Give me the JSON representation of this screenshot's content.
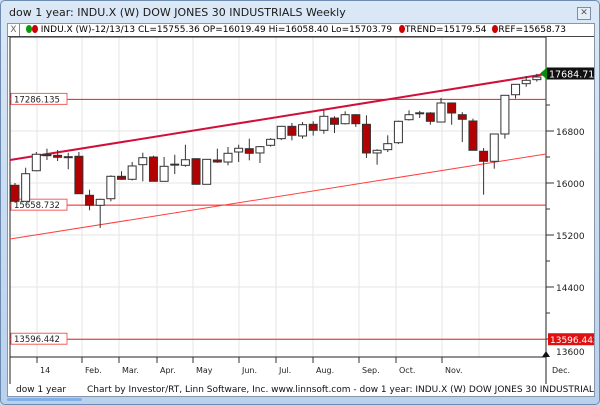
{
  "window": {
    "title": "dow 1 year: INDU.X (W) DOW JONES 30 INDUSTRIALS Weekly",
    "close_icon": "close-icon"
  },
  "legend": {
    "close": "X",
    "symbol": "INDU.X (W)-12/13/13",
    "cl": "CL=15755.36",
    "op": "OP=16019.49",
    "hi": "Hi=16058.40",
    "lo": "Lo=15703.79",
    "trend": "TREND=15179.54",
    "ref": "REF=15658.73",
    "colors": {
      "up": "#0a9a0a",
      "down": "#cc0000"
    }
  },
  "status": {
    "name": "dow 1 year",
    "credit": "Chart by Investor/RT, Linn Software, Inc. www.linnsoft.com - dow 1 year: INDU.X (W) DOW JONES 30 INDUSTRIALS Weekly"
  },
  "chart_data": {
    "type": "candlestick",
    "yticks": [
      16800,
      16000,
      15200,
      14400,
      13600
    ],
    "ylim": [
      13400,
      17900
    ],
    "xticks": [
      "14",
      "Feb.",
      "Mar.",
      "Apr.",
      "May",
      "Jun.",
      "Jul.",
      "Aug.",
      "Sep.",
      "Oct.",
      "Nov.",
      "Dec."
    ],
    "last_price": "17684.71",
    "ref_lines": [
      {
        "label": "17286.135",
        "value": 17286.135
      },
      {
        "label": "15658.732",
        "value": 15658.732
      },
      {
        "label": "13596.442",
        "value": 13596.442
      }
    ],
    "trend_upper": [
      16354,
      17677
    ],
    "trend_lower": [
      15138,
      16446
    ],
    "colors": {
      "down": "#b30000",
      "up": "#ffffff",
      "trend": "#d0103a",
      "ref": "#ee1c1c",
      "lower": "#ff4040"
    },
    "candles": [
      [
        15965,
        16000,
        15697,
        15718
      ],
      [
        15718,
        16235,
        15718,
        16143
      ],
      [
        16189,
        16477,
        16180,
        16442
      ],
      [
        16440,
        16528,
        16354,
        16420
      ],
      [
        16426,
        16508,
        16338,
        16395
      ],
      [
        16405,
        16466,
        16211,
        16395
      ],
      [
        16411,
        16477,
        15835,
        15835
      ],
      [
        15811,
        15897,
        15580,
        15657
      ],
      [
        15657,
        15758,
        15308,
        15749
      ],
      [
        15758,
        16118,
        15718,
        16103
      ],
      [
        16103,
        16180,
        16050,
        16057
      ],
      [
        16057,
        16323,
        16040,
        16262
      ],
      [
        16282,
        16466,
        16026,
        16389
      ],
      [
        16400,
        16420,
        16026,
        16026
      ],
      [
        16026,
        16400,
        16026,
        16257
      ],
      [
        16275,
        16435,
        16138,
        16290
      ],
      [
        16272,
        16589,
        16250,
        16358
      ],
      [
        16374,
        16380,
        15980,
        15980
      ],
      [
        15980,
        16370,
        15980,
        16364
      ],
      [
        16354,
        16528,
        16310,
        16323
      ],
      [
        16323,
        16554,
        16272,
        16457
      ],
      [
        16477,
        16589,
        16323,
        16534
      ],
      [
        16528,
        16682,
        16349,
        16457
      ],
      [
        16462,
        16570,
        16308,
        16559
      ],
      [
        16580,
        16690,
        16560,
        16672
      ],
      [
        16682,
        16880,
        16660,
        16872
      ],
      [
        16872,
        16923,
        16657,
        16734
      ],
      [
        16723,
        16938,
        16682,
        16897
      ],
      [
        16903,
        16950,
        16730,
        16811
      ],
      [
        16811,
        17118,
        16758,
        17026
      ],
      [
        16999,
        17026,
        16769,
        16903
      ],
      [
        16912,
        17103,
        16900,
        17051
      ],
      [
        17051,
        17060,
        16862,
        16912
      ],
      [
        16903,
        17041,
        16385,
        16462
      ],
      [
        16462,
        16520,
        16282,
        16503
      ],
      [
        16513,
        16734,
        16477,
        16605
      ],
      [
        16620,
        16960,
        16600,
        16949
      ],
      [
        16974,
        17118,
        16960,
        17051
      ],
      [
        17074,
        17110,
        17000,
        17080
      ],
      [
        17077,
        17090,
        16897,
        16949
      ],
      [
        16938,
        17308,
        16930,
        17231
      ],
      [
        17231,
        17240,
        16897,
        17077
      ],
      [
        17051,
        17090,
        16631,
        16980
      ],
      [
        16954,
        16990,
        16503,
        16503
      ],
      [
        16488,
        16538,
        15820,
        16334
      ],
      [
        16334,
        16754,
        16220,
        16754
      ],
      [
        16754,
        17349,
        16682,
        17349
      ],
      [
        17358,
        17518,
        17300,
        17518
      ],
      [
        17528,
        17646,
        17480,
        17580
      ],
      [
        17590,
        17680,
        17560,
        17631
      ]
    ]
  }
}
